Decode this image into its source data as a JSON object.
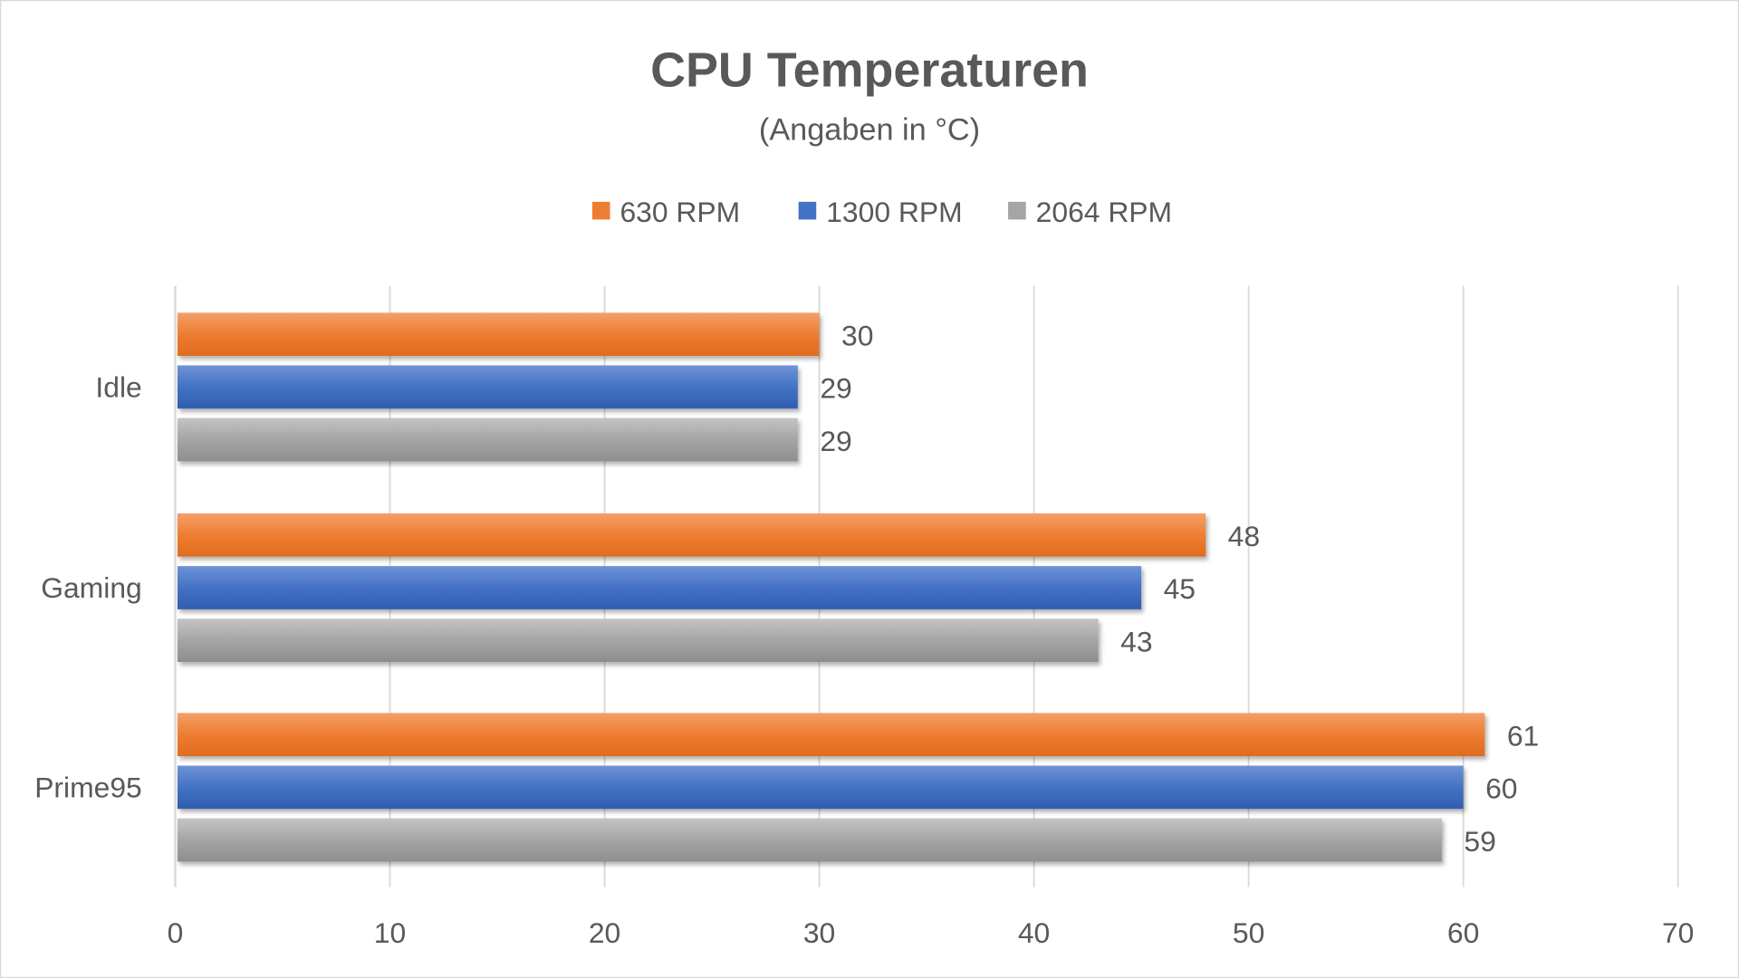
{
  "chart_data": {
    "type": "bar",
    "orientation": "horizontal",
    "title": "CPU Temperaturen",
    "subtitle": "(Angaben in °C)",
    "categories": [
      "Idle",
      "Gaming",
      "Prime95"
    ],
    "series": [
      {
        "name": "630 RPM",
        "color": "#ED7D31",
        "values": [
          30,
          48,
          61
        ]
      },
      {
        "name": "1300 RPM",
        "color": "#4472C4",
        "values": [
          29,
          45,
          60
        ]
      },
      {
        "name": "2064 RPM",
        "color": "#A5A5A5",
        "values": [
          29,
          43,
          59
        ]
      }
    ],
    "xlim": [
      0,
      70
    ],
    "xticks": [
      "0",
      "10",
      "20",
      "30",
      "40",
      "50",
      "60",
      "70"
    ],
    "xtick_values": [
      0,
      10,
      20,
      30,
      40,
      50,
      60,
      70
    ],
    "grid": true,
    "legend_position": "top",
    "data_labels": true
  }
}
